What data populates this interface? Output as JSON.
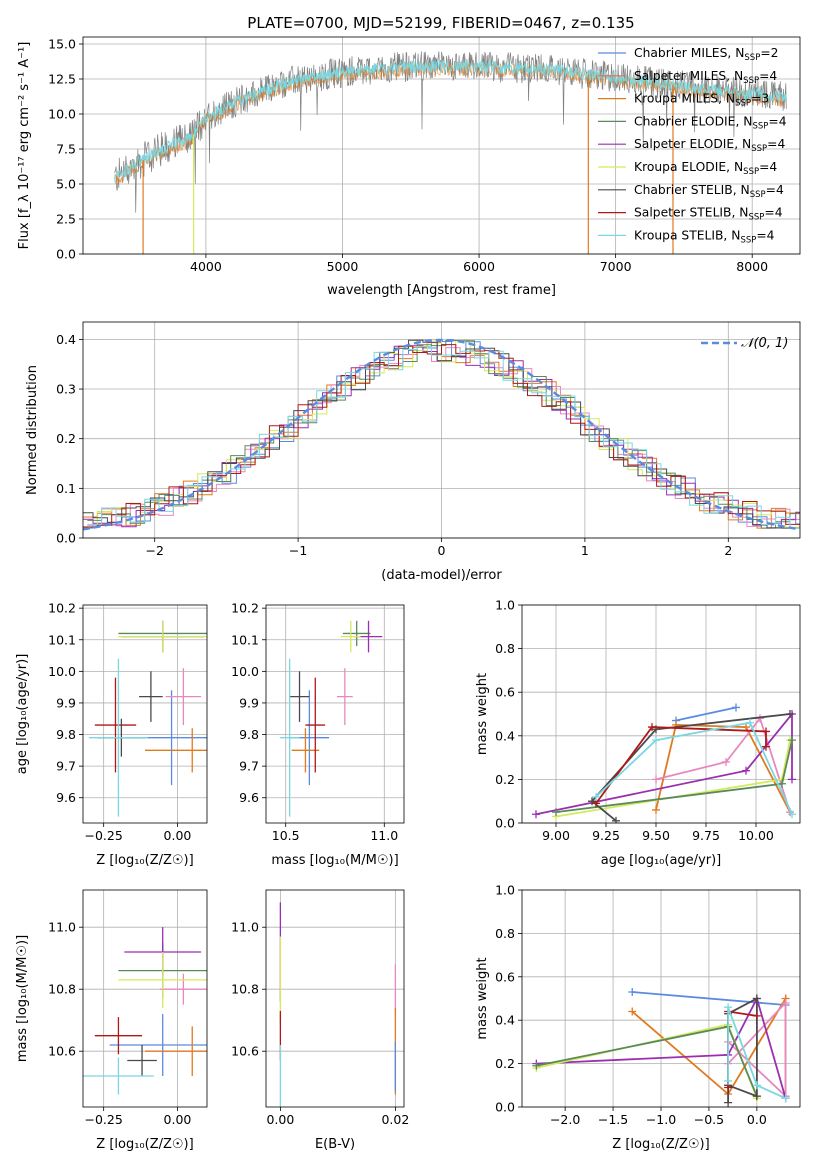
{
  "figure_title": "PLATE=0700, MJD=52199, FIBERID=0467, z=0.135",
  "colors": {
    "Chabrier MILES": "#5b8be0",
    "Salpeter MILES": "#f0695a",
    "Kroupa MILES": "#e07a1f",
    "Chabrier ELODIE": "#5a8a5a",
    "Salpeter ELODIE": "#9a2fb0",
    "Kroupa ELODIE": "#d4ea5a",
    "Chabrier STELIB": "#4a4a4a",
    "Salpeter STELIB": "#b01818",
    "Kroupa STELIB": "#7ad8e0",
    "pink": "#e887c0",
    "gauss": "#5b8be0"
  },
  "chart_data": [
    {
      "id": "spectrum",
      "type": "line",
      "title": "PLATE=0700, MJD=52199, FIBERID=0467, z=0.135",
      "xlabel": "wavelength [Angstrom, rest frame]",
      "ylabel": "Flux [f_λ 10⁻¹⁷ erg cm⁻² s⁻¹ A⁻¹]",
      "xlim": [
        3100,
        8350
      ],
      "ylim": [
        0,
        15.5
      ],
      "xticks": [
        4000,
        5000,
        6000,
        7000,
        8000
      ],
      "yticks": [
        0.0,
        2.5,
        5.0,
        7.5,
        10.0,
        12.5,
        15.0
      ],
      "continuum": {
        "x": [
          3330,
          3450,
          3700,
          3900,
          4000,
          4250,
          4600,
          5000,
          5500,
          6000,
          6500,
          7000,
          7500,
          7900,
          8250
        ],
        "y": [
          5.4,
          6.2,
          7.6,
          8.4,
          9.8,
          11.0,
          12.3,
          13.0,
          13.4,
          13.4,
          13.2,
          12.6,
          12.0,
          11.5,
          11.2
        ]
      },
      "legend": [
        {
          "label": "Chabrier MILES, N",
          "sub": "SSP",
          "suffix": "=2",
          "color": "Chabrier MILES"
        },
        {
          "label": "Salpeter MILES, N",
          "sub": "SSP",
          "suffix": "=4",
          "color": "Salpeter MILES"
        },
        {
          "label": "Kroupa MILES, N",
          "sub": "SSP",
          "suffix": "=3",
          "color": "Kroupa MILES"
        },
        {
          "label": "Chabrier ELODIE, N",
          "sub": "SSP",
          "suffix": "=4",
          "color": "Chabrier ELODIE"
        },
        {
          "label": "Salpeter ELODIE, N",
          "sub": "SSP",
          "suffix": "=4",
          "color": "Salpeter ELODIE"
        },
        {
          "label": "Kroupa ELODIE, N",
          "sub": "SSP",
          "suffix": "=4",
          "color": "Kroupa ELODIE"
        },
        {
          "label": "Chabrier STELIB, N",
          "sub": "SSP",
          "suffix": "=4",
          "color": "Chabrier STELIB"
        },
        {
          "label": "Salpeter STELIB, N",
          "sub": "SSP",
          "suffix": "=4",
          "color": "Salpeter STELIB"
        },
        {
          "label": "Kroupa STELIB, N",
          "sub": "SSP",
          "suffix": "=4",
          "color": "Kroupa STELIB"
        }
      ],
      "drop_lines": [
        {
          "x": 3540,
          "color": "Kroupa MILES"
        },
        {
          "x": 3910,
          "color": "Kroupa ELODIE"
        },
        {
          "x": 6800,
          "color": "Kroupa MILES"
        },
        {
          "x": 7420,
          "color": "Kroupa MILES"
        }
      ],
      "legend_position": "upper right"
    },
    {
      "id": "residuals",
      "type": "line",
      "xlabel": "(data-model)/error",
      "ylabel": "Normed distribution",
      "xlim": [
        -2.5,
        2.5
      ],
      "ylim": [
        0,
        0.435
      ],
      "xticks": [
        -2,
        -1,
        0,
        1,
        2
      ],
      "yticks": [
        0.0,
        0.1,
        0.2,
        0.3,
        0.4
      ],
      "gaussian_label": "𝒩(0, 1)",
      "legend_position": "upper right"
    },
    {
      "id": "age_vs_Z",
      "type": "scatter",
      "xlabel": "Z [log₁₀(Z/Z☉)]",
      "ylabel": "age  [log₁₀(age/yr)]",
      "xlim": [
        -0.32,
        0.1
      ],
      "ylim": [
        9.52,
        10.21
      ],
      "xticks": [
        -0.25,
        0.0
      ],
      "yticks": [
        9.6,
        9.7,
        9.8,
        9.9,
        10.0,
        10.1,
        10.2
      ],
      "points": [
        {
          "x": -0.02,
          "y": 9.79,
          "xerr": 0.18,
          "yerr": 0.15,
          "color": "Chabrier MILES"
        },
        {
          "x": 0.05,
          "y": 9.75,
          "xerr": 0.16,
          "yerr": 0.07,
          "color": "Kroupa MILES"
        },
        {
          "x": 0.02,
          "y": 9.92,
          "xerr": 0.06,
          "yerr": 0.09,
          "color": "pink"
        },
        {
          "x": -0.09,
          "y": 9.92,
          "xerr": 0.04,
          "yerr": 0.08,
          "color": "Chabrier STELIB"
        },
        {
          "x": -0.21,
          "y": 9.83,
          "xerr": 0.07,
          "yerr": 0.15,
          "color": "Salpeter STELIB"
        },
        {
          "x": -0.19,
          "y": 9.79,
          "xerr": 0.08,
          "yerr": 0.06,
          "color": "Chabrier STELIB"
        },
        {
          "x": -0.2,
          "y": 9.79,
          "xerr": 0.1,
          "yerr": 0.25,
          "color": "Kroupa STELIB"
        },
        {
          "x": -0.05,
          "y": 10.12,
          "xerr": 0.15,
          "yerr": 0.04,
          "color": "Chabrier ELODIE"
        },
        {
          "x": -0.05,
          "y": 10.11,
          "xerr": 0.14,
          "yerr": 0.05,
          "color": "Salpeter ELODIE"
        },
        {
          "x": -0.05,
          "y": 10.11,
          "xerr": 0.15,
          "yerr": 0.05,
          "color": "Kroupa ELODIE"
        }
      ]
    },
    {
      "id": "age_vs_mass",
      "type": "scatter",
      "xlabel": "mass [log₁₀(M/M☉)]",
      "ylabel": "",
      "xlim": [
        10.4,
        11.1
      ],
      "ylim": [
        9.52,
        10.21
      ],
      "xticks": [
        10.5,
        11.0
      ],
      "yticks": [
        9.6,
        9.7,
        9.8,
        9.9,
        10.0,
        10.1,
        10.2
      ],
      "points": [
        {
          "x": 10.62,
          "y": 9.79,
          "xerr": 0.1,
          "yerr": 0.15,
          "color": "Chabrier MILES"
        },
        {
          "x": 10.6,
          "y": 9.75,
          "xerr": 0.07,
          "yerr": 0.07,
          "color": "Kroupa MILES"
        },
        {
          "x": 10.8,
          "y": 9.92,
          "xerr": 0.04,
          "yerr": 0.09,
          "color": "pink"
        },
        {
          "x": 10.57,
          "y": 9.92,
          "xerr": 0.05,
          "yerr": 0.08,
          "color": "Chabrier STELIB"
        },
        {
          "x": 10.65,
          "y": 9.83,
          "xerr": 0.05,
          "yerr": 0.15,
          "color": "Salpeter STELIB"
        },
        {
          "x": 10.52,
          "y": 9.79,
          "xerr": 0.05,
          "yerr": 0.25,
          "color": "Kroupa STELIB"
        },
        {
          "x": 10.86,
          "y": 10.12,
          "xerr": 0.07,
          "yerr": 0.04,
          "color": "Chabrier ELODIE"
        },
        {
          "x": 10.92,
          "y": 10.11,
          "xerr": 0.07,
          "yerr": 0.05,
          "color": "Salpeter ELODIE"
        },
        {
          "x": 10.83,
          "y": 10.11,
          "xerr": 0.05,
          "yerr": 0.05,
          "color": "Kroupa ELODIE"
        }
      ]
    },
    {
      "id": "massweight_vs_age",
      "type": "line",
      "xlabel": "age  [log₁₀(age/yr)]",
      "ylabel": "mass weight",
      "xlim": [
        8.83,
        10.22
      ],
      "ylim": [
        0,
        1.0
      ],
      "xticks": [
        9.0,
        9.25,
        9.5,
        9.75,
        10.0
      ],
      "yticks": [
        0.0,
        0.2,
        0.4,
        0.6,
        0.8,
        1.0
      ],
      "series": [
        {
          "color": "Chabrier MILES",
          "x": [
            9.6,
            9.9
          ],
          "y": [
            0.47,
            0.53
          ]
        },
        {
          "color": "Kroupa MILES",
          "x": [
            9.5,
            9.6,
            9.95,
            10.17
          ],
          "y": [
            0.06,
            0.45,
            0.44,
            0.05
          ]
        },
        {
          "color": "pink",
          "x": [
            9.5,
            9.85,
            10.02,
            10.17
          ],
          "y": [
            0.2,
            0.28,
            0.48,
            0.05
          ]
        },
        {
          "color": "Salpeter ELODIE",
          "x": [
            8.9,
            9.95,
            10.18,
            10.18
          ],
          "y": [
            0.04,
            0.24,
            0.5,
            0.2
          ]
        },
        {
          "color": "Kroupa ELODIE",
          "x": [
            9.0,
            10.13,
            10.17
          ],
          "y": [
            0.03,
            0.2,
            0.38
          ]
        },
        {
          "color": "Chabrier ELODIE",
          "x": [
            9.0,
            10.13,
            10.18
          ],
          "y": [
            0.05,
            0.18,
            0.38
          ]
        },
        {
          "color": "Chabrier STELIB",
          "x": [
            9.3,
            9.18,
            9.5,
            10.17
          ],
          "y": [
            0.01,
            0.1,
            0.43,
            0.5
          ]
        },
        {
          "color": "Salpeter STELIB",
          "x": [
            9.2,
            9.48,
            10.05,
            10.05
          ],
          "y": [
            0.09,
            0.44,
            0.42,
            0.35
          ]
        },
        {
          "color": "Kroupa STELIB",
          "x": [
            9.2,
            9.5,
            9.97,
            10.18
          ],
          "y": [
            0.12,
            0.38,
            0.46,
            0.04
          ]
        }
      ]
    },
    {
      "id": "mass_vs_Z",
      "type": "scatter",
      "xlabel": "Z [log₁₀(Z/Z☉)]",
      "ylabel": "mass [log₁₀(M/M☉)]",
      "xlim": [
        -0.32,
        0.1
      ],
      "ylim": [
        10.42,
        11.12
      ],
      "xticks": [
        -0.25,
        0.0
      ],
      "yticks": [
        10.6,
        10.8,
        11.0
      ],
      "points": [
        {
          "x": -0.05,
          "y": 10.62,
          "xerr": 0.18,
          "yerr": 0.1,
          "color": "Chabrier MILES"
        },
        {
          "x": 0.05,
          "y": 10.6,
          "xerr": 0.16,
          "yerr": 0.08,
          "color": "Kroupa MILES"
        },
        {
          "x": 0.02,
          "y": 10.8,
          "xerr": 0.08,
          "yerr": 0.05,
          "color": "pink"
        },
        {
          "x": -0.12,
          "y": 10.57,
          "xerr": 0.05,
          "yerr": 0.05,
          "color": "Chabrier STELIB"
        },
        {
          "x": -0.2,
          "y": 10.65,
          "xerr": 0.08,
          "yerr": 0.06,
          "color": "Salpeter STELIB"
        },
        {
          "x": -0.2,
          "y": 10.52,
          "xerr": 0.12,
          "yerr": 0.06,
          "color": "Kroupa STELIB"
        },
        {
          "x": -0.05,
          "y": 10.86,
          "xerr": 0.15,
          "yerr": 0.09,
          "color": "Chabrier ELODIE"
        },
        {
          "x": -0.05,
          "y": 10.92,
          "xerr": 0.13,
          "yerr": 0.08,
          "color": "Salpeter ELODIE"
        },
        {
          "x": -0.05,
          "y": 10.83,
          "xerr": 0.15,
          "yerr": 0.09,
          "color": "Kroupa ELODIE"
        }
      ]
    },
    {
      "id": "mass_vs_ebv",
      "type": "scatter",
      "xlabel": "E(B-V)",
      "ylabel": "",
      "xlim": [
        -0.0025,
        0.0215
      ],
      "ylim": [
        10.42,
        11.12
      ],
      "xticks": [
        0.0,
        0.02
      ],
      "yticks": [
        10.6,
        10.8,
        11.0
      ],
      "points": [
        {
          "x": 0.0,
          "y": 10.92,
          "yerr": 0.16,
          "color": "Salpeter ELODIE"
        },
        {
          "x": 0.0,
          "y": 10.83,
          "yerr": 0.14,
          "color": "Kroupa ELODIE"
        },
        {
          "x": 0.0,
          "y": 10.65,
          "yerr": 0.08,
          "color": "Salpeter STELIB"
        },
        {
          "x": 0.0,
          "y": 10.52,
          "yerr": 0.1,
          "color": "Kroupa STELIB"
        },
        {
          "x": 0.02,
          "y": 10.8,
          "yerr": 0.08,
          "color": "pink"
        },
        {
          "x": 0.02,
          "y": 10.6,
          "yerr": 0.14,
          "color": "Kroupa MILES"
        },
        {
          "x": 0.02,
          "y": 10.55,
          "yerr": 0.08,
          "color": "Chabrier MILES"
        }
      ]
    },
    {
      "id": "massweight_vs_Z",
      "type": "line",
      "xlabel": "Z [log₁₀(Z/Z☉)]",
      "ylabel": "mass weight",
      "xlim": [
        -2.45,
        0.45
      ],
      "ylim": [
        0,
        1.0
      ],
      "xticks": [
        -2.0,
        -1.5,
        -1.0,
        -0.5,
        0.0
      ],
      "yticks": [
        0.0,
        0.2,
        0.4,
        0.6,
        0.8,
        1.0
      ],
      "series": [
        {
          "color": "Chabrier MILES",
          "x": [
            -1.3,
            0.3
          ],
          "y": [
            0.53,
            0.47
          ]
        },
        {
          "color": "Kroupa MILES",
          "x": [
            -1.3,
            -0.3,
            0.3,
            0.3
          ],
          "y": [
            0.44,
            0.06,
            0.5,
            0.05
          ]
        },
        {
          "color": "pink",
          "x": [
            -0.3,
            0.3,
            0.3,
            -0.3
          ],
          "y": [
            0.2,
            0.48,
            0.05,
            0.3
          ]
        },
        {
          "color": "Salpeter ELODIE",
          "x": [
            -2.3,
            -0.3,
            0.0,
            0.3
          ],
          "y": [
            0.2,
            0.24,
            0.5,
            0.04
          ]
        },
        {
          "color": "Kroupa ELODIE",
          "x": [
            -2.3,
            -0.3,
            0.0
          ],
          "y": [
            0.18,
            0.38,
            0.04
          ]
        },
        {
          "color": "Chabrier ELODIE",
          "x": [
            -2.3,
            -0.3,
            0.0
          ],
          "y": [
            0.19,
            0.37,
            0.05
          ]
        },
        {
          "color": "Chabrier STELIB",
          "x": [
            -0.3,
            -0.3,
            0.0,
            0.0,
            -0.3
          ],
          "y": [
            0.02,
            0.43,
            0.5,
            0.05,
            0.1
          ]
        },
        {
          "color": "Salpeter STELIB",
          "x": [
            -0.3,
            -0.3,
            0.0
          ],
          "y": [
            0.09,
            0.44,
            0.42
          ]
        },
        {
          "color": "Kroupa STELIB",
          "x": [
            -0.3,
            -0.3,
            0.0,
            0.3
          ],
          "y": [
            0.12,
            0.46,
            0.1,
            0.04
          ]
        }
      ]
    }
  ]
}
